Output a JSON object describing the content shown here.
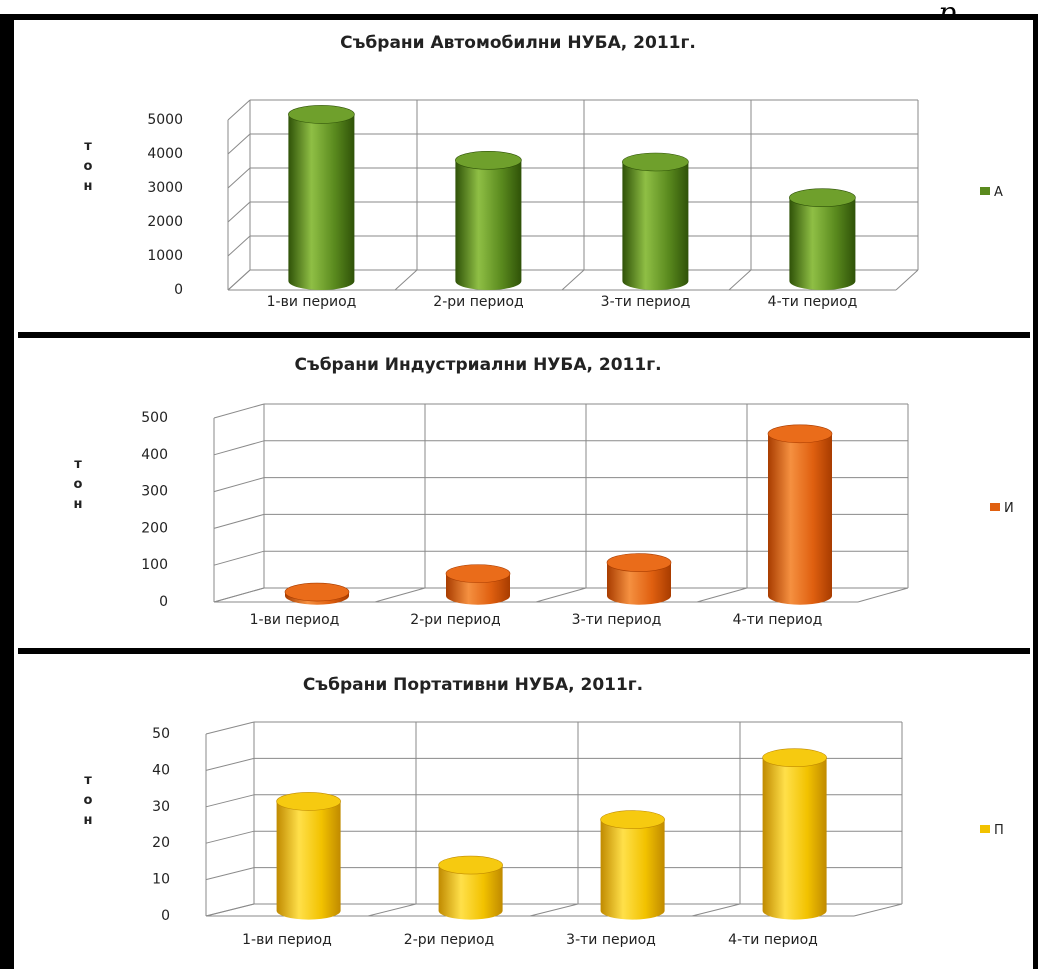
{
  "page": {
    "corner_text": "р         ,"
  },
  "chart_data": [
    {
      "type": "bar",
      "title": "Събрани  Автомобилни НУБА, 2011г.",
      "ylabel": "т о н",
      "categories": [
        "1-ви период",
        "2-ри период",
        "3-ти период",
        "4-ти период"
      ],
      "series": [
        {
          "name": "А",
          "values": [
            4900,
            3550,
            3500,
            2450
          ]
        }
      ],
      "yticks": [
        "5000",
        "4000",
        "3000",
        "2000",
        "1000",
        "0"
      ],
      "ylim": [
        0,
        5000
      ],
      "grid": true,
      "legend": "right",
      "color": "#5a8a1e",
      "color_dark": "#2f5208",
      "color_light": "#8fbf45",
      "color_top": "#6fa02c"
    },
    {
      "type": "bar",
      "title": "Събрани Индустриални НУБА, 2011г.",
      "ylabel": "т о н",
      "categories": [
        "1-ви период",
        "2-ри период",
        "3-ти период",
        "4-ти период"
      ],
      "series": [
        {
          "name": "И",
          "values": [
            10,
            60,
            90,
            440
          ]
        }
      ],
      "yticks": [
        "500",
        "400",
        "300",
        "200",
        "100",
        "0"
      ],
      "ylim": [
        0,
        500
      ],
      "grid": true,
      "legend": "right",
      "color": "#e06010",
      "color_dark": "#a83c00",
      "color_light": "#f59040",
      "color_top": "#ea6c1a"
    },
    {
      "type": "bar",
      "title": "Събрани Портативни НУБА, 2011г.",
      "ylabel": "т о н",
      "categories": [
        "1-ви период",
        "2-ри период",
        "3-ти период",
        "4-ти период"
      ],
      "series": [
        {
          "name": "П",
          "values": [
            30,
            12.5,
            25,
            42
          ]
        }
      ],
      "yticks": [
        "50",
        "40",
        "30",
        "20",
        "10",
        "0"
      ],
      "ylim": [
        0,
        50
      ],
      "grid": true,
      "legend": "right",
      "color": "#f2c200",
      "color_dark": "#c08a00",
      "color_light": "#ffe04a",
      "color_top": "#f6ca10"
    }
  ]
}
